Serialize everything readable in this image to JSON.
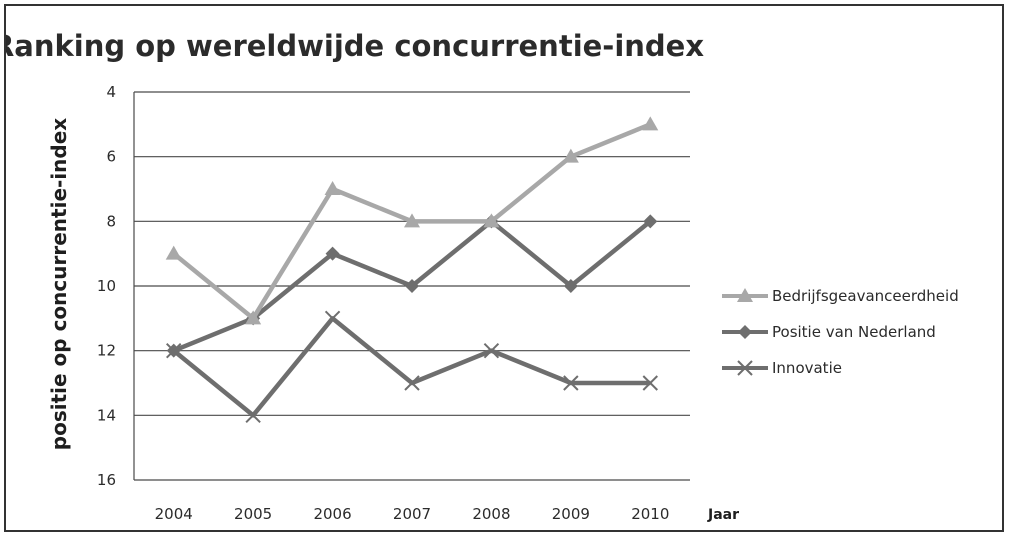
{
  "chart_data": {
    "type": "line",
    "title": "Ranking op wereldwijde concurrentie-index",
    "ylabel": "positie op concurrentie-index",
    "xlabel": "Jaar",
    "x": [
      "2004",
      "2005",
      "2006",
      "2007",
      "2008",
      "2009",
      "2010"
    ],
    "ylim": [
      4,
      16
    ],
    "y_inverted": true,
    "yticks": [
      4,
      6,
      8,
      10,
      12,
      14,
      16
    ],
    "grid": true,
    "legend_position": "right",
    "series": [
      {
        "name": "Bedrijfsgeavanceerdheid",
        "values": [
          9,
          11,
          7,
          8,
          8,
          6,
          5
        ],
        "color": "#a8a8a8",
        "marker": "triangle"
      },
      {
        "name": "Positie van Nederland",
        "values": [
          12,
          11,
          9,
          10,
          8,
          10,
          8
        ],
        "color": "#6e6e6e",
        "marker": "diamond"
      },
      {
        "name": "Innovatie",
        "values": [
          12,
          14,
          11,
          13,
          12,
          13,
          13
        ],
        "color": "#6e6e6e",
        "marker": "x"
      }
    ]
  }
}
